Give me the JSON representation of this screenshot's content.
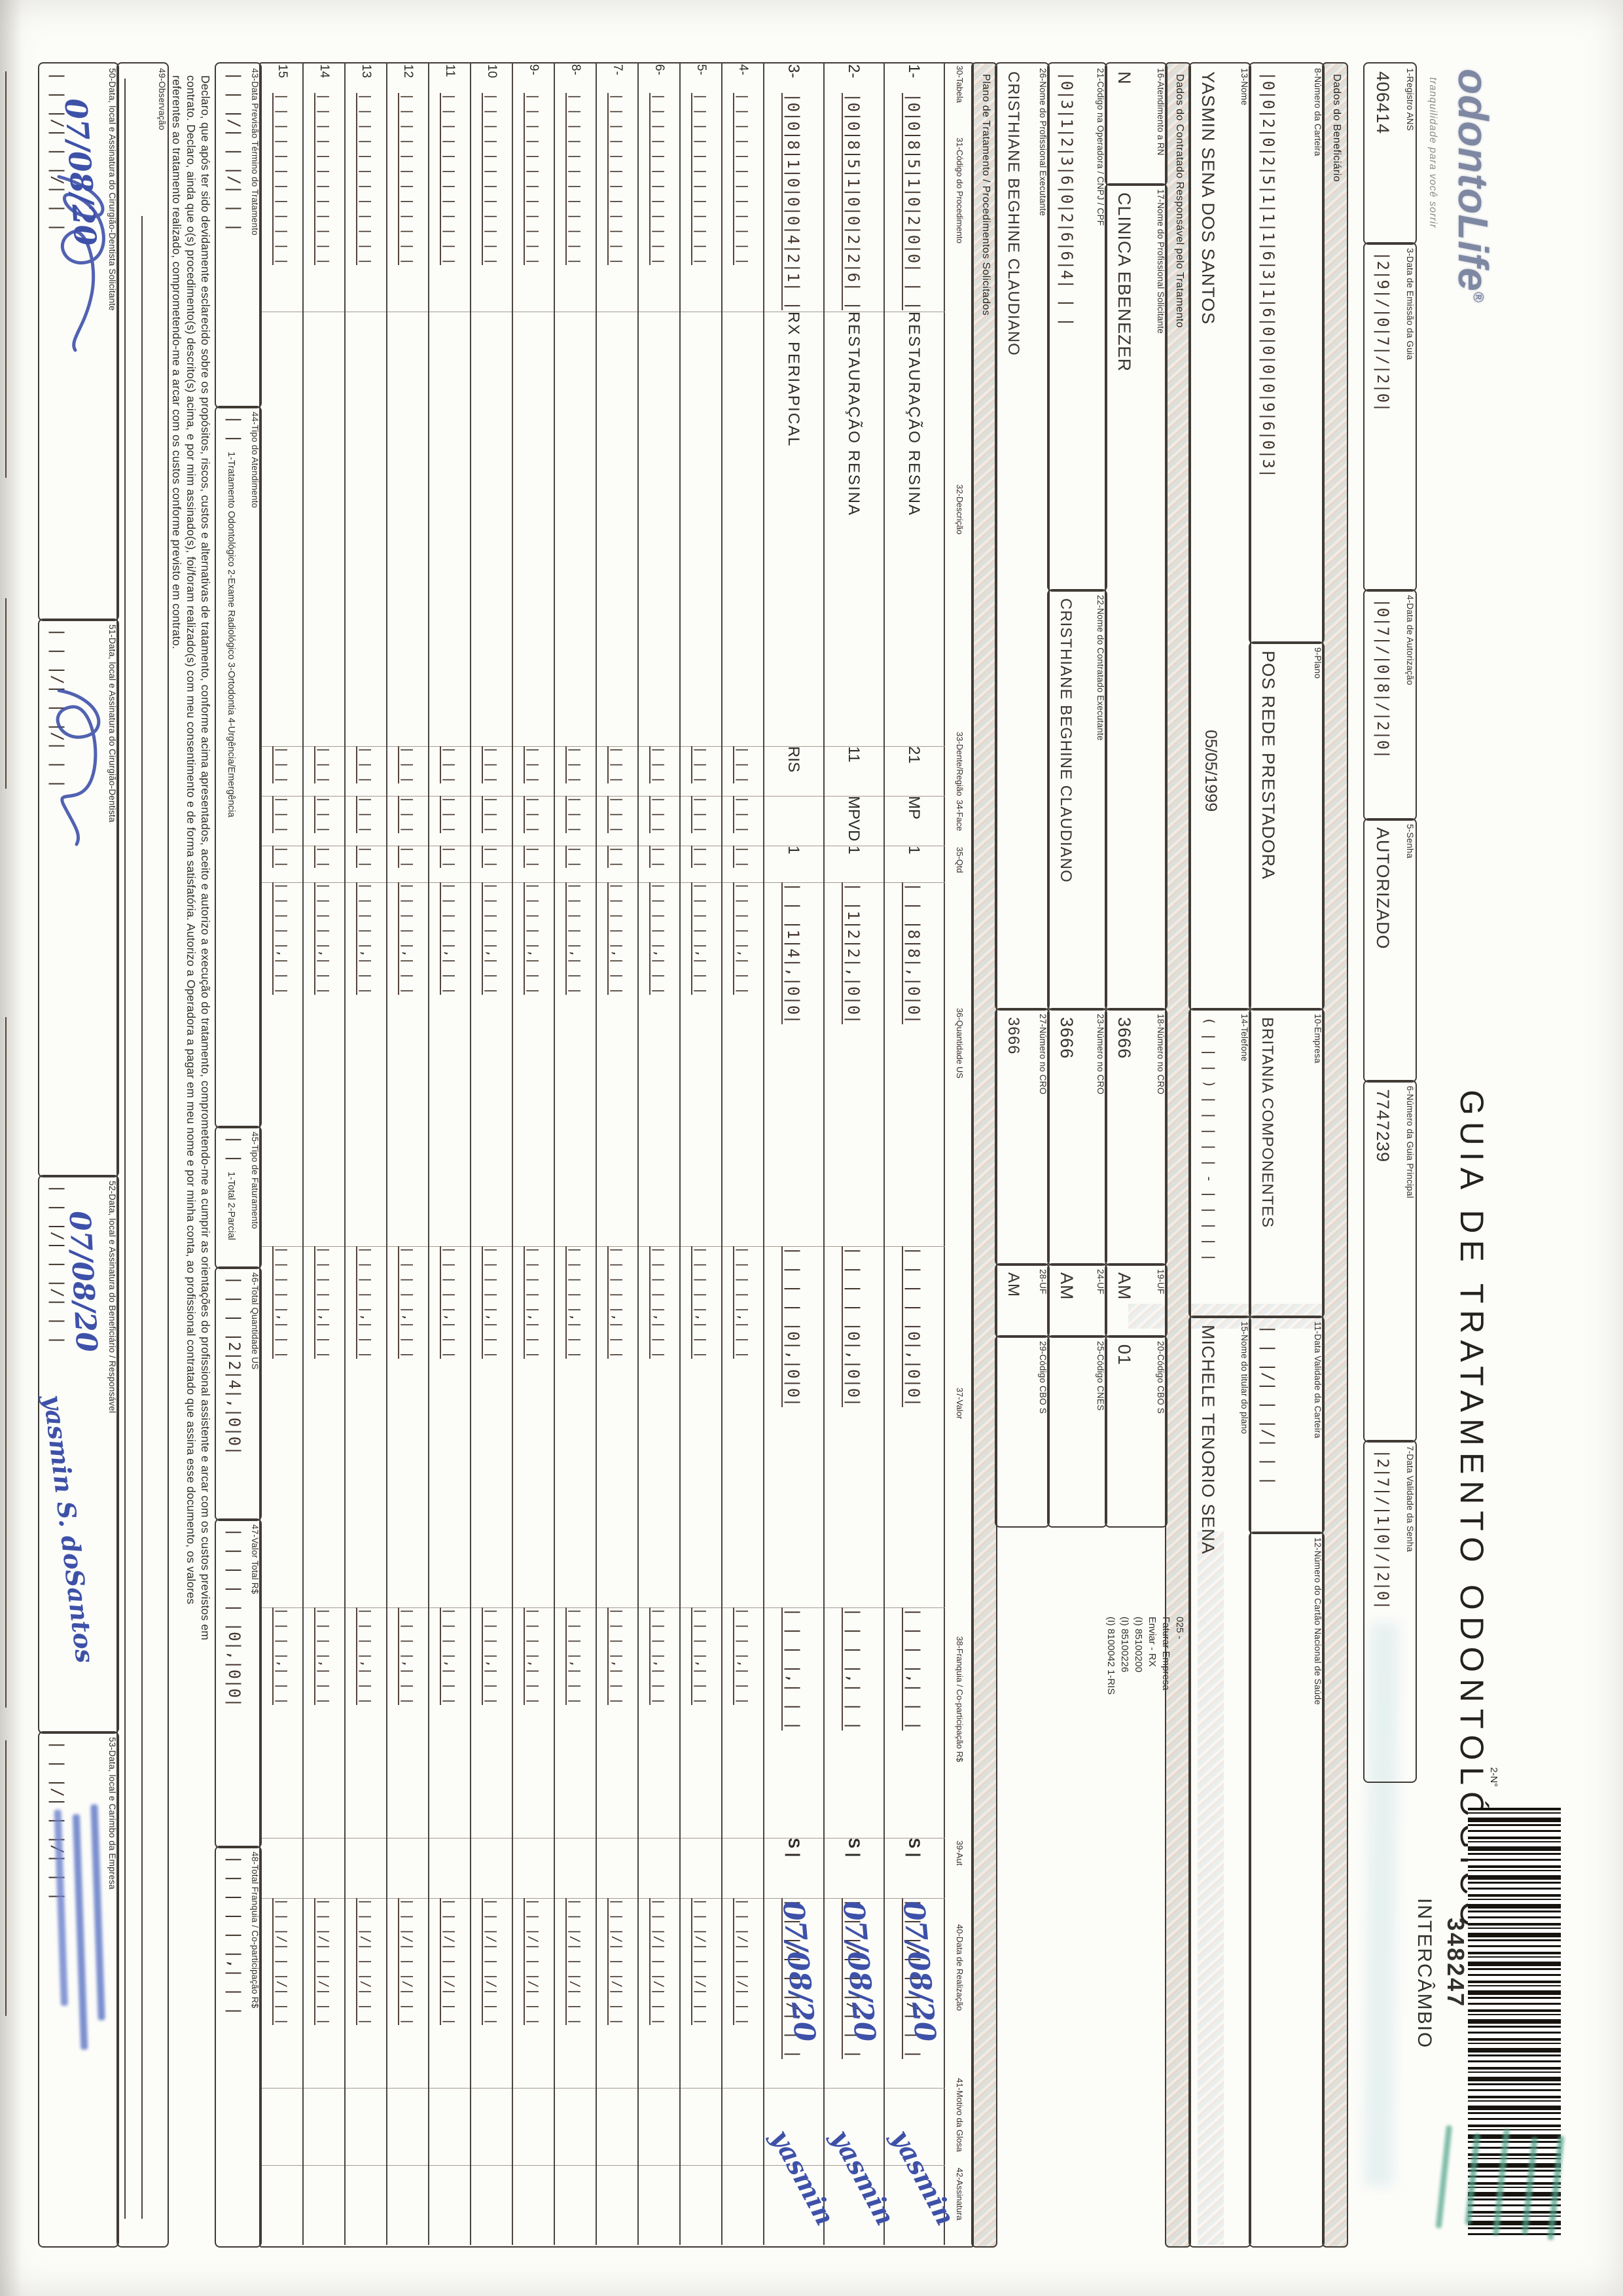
{
  "header": {
    "logo_text": "odontoLife",
    "logo_reg": "®",
    "tagline": "tranquilidade para você sorrir",
    "title": "GUIA DE TRATAMENTO ODONTOLÓGICO",
    "n2_label": "2-N°",
    "barcode_number": "348247",
    "barcode_caption": "INTERCÂMBIO"
  },
  "sections": {
    "beneficiario": "Dados do Beneficiário",
    "contratado": "Dados do Contratado Responsável pelo Tratamento",
    "plano": "Plano de Tratamento / Procedimentos Solicitados"
  },
  "fields": {
    "f1": {
      "label": "1-Registro ANS",
      "value": "406414"
    },
    "f3": {
      "label": "3-Data de Emissão da Guia",
      "value": "|2|9|/|0|7|/|2|0|",
      "comb": true
    },
    "f4": {
      "label": "4-Data de Autorização",
      "value": "|0|7|/|0|8|/|2|0|",
      "comb": true
    },
    "f5": {
      "label": "5-Senha",
      "value": "AUTORIZADO"
    },
    "f6": {
      "label": "6-Número da Guia Principal",
      "value": "7747239"
    },
    "f7": {
      "label": "7-Data Validade da Senha",
      "value": "|2|7|/|1|0|/|2|0|",
      "comb": true
    },
    "f8": {
      "label": "8-Número da Carteira",
      "value": "|0|0|2|0|2|5|1|1|1|6|3|1|6|0|0|0|0|9|6|0|3|",
      "comb": true
    },
    "f9": {
      "label": "9-Plano",
      "value": "POS REDE PRESTADORA"
    },
    "f10": {
      "label": "10-Empresa",
      "value": "BRITANIA COMPONENTES"
    },
    "f11": {
      "label": "11-Data Validade da Carteira",
      "value": "| | |/| | |/| | |",
      "comb": true
    },
    "f12": {
      "label": "12-Número do Cartão Nacional de Saúde",
      "value": ""
    },
    "f13": {
      "label": "13-Nome",
      "value": "YASMIN SENA DOS SANTOS",
      "value2": "05/05/1999"
    },
    "f14": {
      "label": "14-Telefone",
      "value": "( | | | )  | | | | | - | | | | |",
      "comb": true
    },
    "f15": {
      "label": "15-Nome do titular do plano",
      "value": "MICHELE TENORIO SENA"
    },
    "f16": {
      "label": "16-Atendimento a RN",
      "value": "N"
    },
    "f17": {
      "label": "17-Nome do Profissional Solicitante",
      "value": "CLINICA EBENEZER"
    },
    "f18": {
      "label": "18-Número no CRO",
      "value": "3666"
    },
    "f19": {
      "label": "19-UF",
      "value": "AM"
    },
    "f20": {
      "label": "20-Código CBO S",
      "value": "01"
    },
    "f21": {
      "label": "21-Código na Operadora / CNPJ / CPF",
      "value": "|0|3|1|2|3|6|0|2|6|6|4| | |",
      "comb": true
    },
    "f22": {
      "label": "22-Nome do Contratado Executante",
      "value": "CRISTHIANE BEGHINE CLAUDIANO"
    },
    "f23": {
      "label": "23-Número no CRO",
      "value": "3666"
    },
    "f24": {
      "label": "24-UF",
      "value": "AM"
    },
    "f25": {
      "label": "25-Código CNES",
      "value": ""
    },
    "f26": {
      "label": "26-Nome do Profissional Executante",
      "value": "CRISTHIANE BEGHINE CLAUDIANO"
    },
    "f27": {
      "label": "27-Número no CRO",
      "value": "3666"
    },
    "f28": {
      "label": "28-UF",
      "value": "AM"
    },
    "f29": {
      "label": "29-Código CBO S",
      "value": ""
    },
    "f43": {
      "label": "43-Data Previsão Término do Tratamento",
      "value": "| | |/| | |/| | |",
      "comb": true
    },
    "f44": {
      "label": "44-Tipo do Atendimento",
      "value": "| |",
      "comb": true,
      "options": "1-Tratamento Odontológico   2-Exame Radiológico   3-Ortodontia   4-Urgência/Emergência"
    },
    "f45": {
      "label": "45-Tipo de Faturamento",
      "value": "| |",
      "comb": true,
      "options": "1-Total   2-Parcial"
    },
    "f46": {
      "label": "46-Total Quantidade US",
      "value": "| | | |2|2|4|,|0|0|",
      "comb": true
    },
    "f47": {
      "label": "47-Valor Total R$",
      "value": "| | | | | |0|,|0|0|",
      "comb": true
    },
    "f48": {
      "label": "48-Total Franquia / Co-participação R$",
      "value": "| | | | | |,| | |",
      "comb": true
    },
    "f49": {
      "label": "49-Observação",
      "value": ""
    },
    "f50": {
      "label": "50-Data, local e Assinatura do Cirurgião-Dentista Solicitante",
      "value": "| | |/| | |/| | |",
      "comb": true
    },
    "f51": {
      "label": "51-Data, local e Assinatura do Cirurgião-Dentista",
      "value": "| | |/| | |/| | |",
      "comb": true
    },
    "f52": {
      "label": "52-Data, local e Assinatura do Beneficiário / Responsável",
      "value": "| | |/| | |/| | |",
      "comb": true
    },
    "f53": {
      "label": "53-Data, local e Carimbo da Empresa",
      "value": "| | |/| | |/| | |",
      "comb": true
    }
  },
  "routing_block": [
    "025 -",
    "Faturar Empresa",
    "Enviar - RX",
    "(I) 85100200",
    "(I) 85100226",
    "(I) 8100042 1-RIS"
  ],
  "table": {
    "headers": {
      "h30": "30-Tabela",
      "h31": "31-Código do Procedimento",
      "h32": "32-Descrição",
      "h33": "33-Dente/Região",
      "h34": "34-Face",
      "h35": "35-Qtd",
      "h36": "36-Quantidade US",
      "h37": "37-Valor",
      "h38": "38-Franquia / Co-participação R$",
      "h39": "39-Aut",
      "h40": "40-Data de Realização",
      "h41": "41-Motivo da Glosa",
      "h42": "42-Assinatura"
    },
    "rows": [
      {
        "num": "1-",
        "code": "|0|0|8|5|1|0|2|0|0| | |",
        "desc": "RESTAURAÇÃO RESINA",
        "dente": "21",
        "face": "MP",
        "qtd": "1",
        "us": "| | |8|8|,|0|0|",
        "valor": "| | | | |0|,|0|0|",
        "franquia": "| | | |,| | |",
        "aut": "S",
        "data": "| | |/| | |/| | |",
        "data_ink": "07/08/20",
        "sig": "yasmin"
      },
      {
        "num": "2-",
        "code": "|0|0|8|5|1|0|0|2|2|6| |",
        "desc": "RESTAURAÇÃO RESINA",
        "dente": "11",
        "face": "MPVD",
        "qtd": "1",
        "us": "| |1|2|2|,|0|0|",
        "valor": "| | | | |0|,|0|0|",
        "franquia": "| | | |,| | |",
        "aut": "S",
        "data": "| | |/| | |/| | |",
        "data_ink": "07/08/20",
        "sig": "yasmin"
      },
      {
        "num": "3-",
        "code": "|0|0|8|1|0|0|0|4|2|1| |",
        "desc": "RX PERIAPICAL",
        "dente": "RIS",
        "face": "",
        "qtd": "1",
        "us": "| | |1|4|,|0|0|",
        "valor": "| | | | |0|,|0|0|",
        "franquia": "| | | |,| | |",
        "aut": "S",
        "data": "| | |/| | |/| | |",
        "data_ink": "07/08/20",
        "sig": "yasmin"
      },
      {
        "num": "4-"
      },
      {
        "num": "5-"
      },
      {
        "num": "6-"
      },
      {
        "num": "7-"
      },
      {
        "num": "8-"
      },
      {
        "num": "9-"
      },
      {
        "num": "10"
      },
      {
        "num": "11"
      },
      {
        "num": "12"
      },
      {
        "num": "13"
      },
      {
        "num": "14"
      },
      {
        "num": "15"
      }
    ],
    "empty_row": {
      "code": "| | | | | | | | | | | |",
      "dente": "| | |",
      "face": "| | |",
      "qtd": "| |",
      "us": "| | | | |,| | |",
      "valor": "| | | | |,| | |",
      "franquia": "| | | |,| | |",
      "aut": "",
      "data": "| | |/| | |/| | |"
    }
  },
  "declaration": [
    "Declaro, que após ter sido devidamente esclarecido sobre os propósitos, riscos, custos e alternativas de tratamento, conforme acima apresentados, aceito e autorizo a execução do tratamento, comprometendo-me a cumprir as orientações do profissional assistente e arcar com os custos previstos em",
    "contrato. Declaro, ainda que o(s) procedimento(s) descrito(s) acima, e por mim assinado(s), foi/foram realizado(s) com meu consentimento e de forma satisfatória. Autorizo a Operadora a pagar em meu nome e por minha conta, ao profissional contratado que assina esse documento, os valores",
    "referentes ao tratamento realizado, comprometendo-me a arcar com os custos conforme previsto em contrato."
  ],
  "handwriting": {
    "date": "07/08/20",
    "beneficiary_signature": "yasmin S. doSantos",
    "row_signature": "yasmin"
  },
  "stamps": {
    "company_stamp": "illegible blue ink stamp",
    "green_stamp": "illegible green ink stamp"
  }
}
